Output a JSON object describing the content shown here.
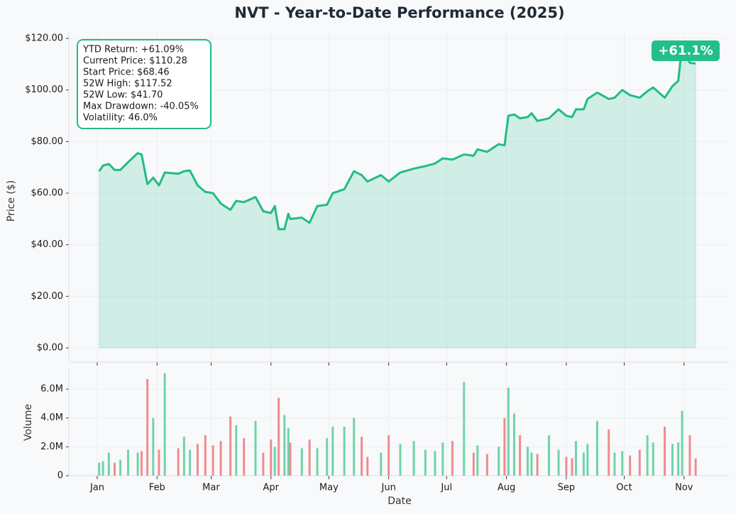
{
  "chart_data": [
    {
      "type": "line",
      "title": "NVT - Year-to-Date Performance (2025)",
      "y_label": "Price ($)",
      "annotation_lines": [
        "YTD Return: +61.09%",
        "Current Price: $110.28",
        "Start Price: $68.46",
        "52W High: $117.52",
        "52W Low: $41.70",
        "Max Drawdown: -40.05%",
        "Volatility: 46.0%"
      ],
      "badge": "+61.1%",
      "color": "#22bb88",
      "x": [
        2,
        4,
        7,
        10,
        13,
        17,
        22,
        24,
        27,
        30,
        33,
        36,
        43,
        46,
        49,
        53,
        57,
        61,
        65,
        70,
        73,
        77,
        83,
        87,
        91,
        93,
        95,
        98,
        100,
        101,
        107,
        111,
        115,
        120,
        123,
        129,
        134,
        138,
        141,
        148,
        152,
        158,
        165,
        171,
        176,
        180,
        185,
        191,
        196,
        198,
        203,
        209,
        212,
        214,
        217,
        220,
        224,
        226,
        229,
        235,
        240,
        244,
        247,
        249,
        253,
        255,
        260,
        266,
        269,
        273,
        277,
        282,
        286,
        289,
        295,
        299,
        302,
        304,
        308,
        311
      ],
      "values": [
        68.46,
        70.7,
        71.3,
        69,
        69,
        72,
        75.5,
        75,
        63.5,
        66,
        63,
        68,
        67.5,
        68.5,
        68.8,
        63,
        60.5,
        60,
        56,
        53.5,
        57,
        56.5,
        58.5,
        53,
        52.3,
        55,
        46,
        46,
        52,
        50,
        50.5,
        48.5,
        55,
        55.5,
        60,
        61.5,
        68.5,
        67,
        64.5,
        67,
        64.5,
        68,
        69.5,
        70.5,
        71.5,
        73.5,
        73,
        75,
        74.5,
        77,
        76,
        79,
        78.5,
        90,
        90.5,
        89,
        89.5,
        91,
        88,
        89,
        92.5,
        90,
        89.5,
        92.5,
        92.5,
        96.5,
        99,
        96.5,
        97,
        100,
        98,
        97,
        99.5,
        101,
        97,
        101.5,
        103.5,
        117.52,
        110.5,
        110.28
      ],
      "xlim": [
        -13.7,
        327.5
      ],
      "xticks": [
        1,
        32,
        60,
        91,
        121,
        152,
        182,
        213,
        244,
        274,
        305
      ],
      "ylim": [
        -5.5,
        122.5
      ],
      "yticks": [
        {
          "value": 0,
          "label": "$0.00"
        },
        {
          "value": 20,
          "label": "$20.00"
        },
        {
          "value": 40,
          "label": "$40.00"
        },
        {
          "value": 60,
          "label": "$60.00"
        },
        {
          "value": 80,
          "label": "$80.00"
        },
        {
          "value": 100,
          "label": "$100.00"
        },
        {
          "value": 120,
          "label": "$120.00"
        }
      ],
      "grid": true
    },
    {
      "type": "bar",
      "x_label": "Date",
      "y_label": "Volume",
      "up_color": "#5fcfa0",
      "down_color": "#ee7f7f",
      "x": [
        2,
        4,
        7,
        10,
        13,
        17,
        22,
        24,
        27,
        30,
        33,
        36,
        43,
        46,
        49,
        53,
        57,
        61,
        65,
        70,
        73,
        77,
        83,
        87,
        91,
        93,
        95,
        98,
        100,
        101,
        107,
        111,
        115,
        120,
        123,
        129,
        134,
        138,
        141,
        148,
        152,
        158,
        165,
        171,
        176,
        180,
        185,
        191,
        196,
        198,
        203,
        209,
        212,
        214,
        217,
        220,
        224,
        226,
        229,
        235,
        240,
        244,
        247,
        249,
        253,
        255,
        260,
        266,
        269,
        273,
        277,
        282,
        286,
        289,
        295,
        299,
        302,
        304,
        308,
        311
      ],
      "values": [
        900000,
        1000000,
        1600000,
        900000,
        1100000,
        1800000,
        1600000,
        1700000,
        6700000,
        4000000,
        1800000,
        7100000,
        1900000,
        2700000,
        1800000,
        2200000,
        2800000,
        2100000,
        2400000,
        4100000,
        3500000,
        2600000,
        3800000,
        1600000,
        2500000,
        2000000,
        5400000,
        4200000,
        3300000,
        2300000,
        1900000,
        2500000,
        1900000,
        2600000,
        3400000,
        3400000,
        4000000,
        2700000,
        1300000,
        1600000,
        2800000,
        2200000,
        2400000,
        1800000,
        1700000,
        2300000,
        2400000,
        6500000,
        1600000,
        2100000,
        1500000,
        2000000,
        4000000,
        6100000,
        4300000,
        2800000,
        2000000,
        1600000,
        1500000,
        2800000,
        1800000,
        1300000,
        1200000,
        2400000,
        1600000,
        2200000,
        3800000,
        3200000,
        1600000,
        1700000,
        1400000,
        1800000,
        2800000,
        2300000,
        3400000,
        2200000,
        2300000,
        4500000,
        2800000,
        1200000
      ],
      "xlim": [
        -13.7,
        327.5
      ],
      "xticks": [
        {
          "value": 1,
          "label": "Jan"
        },
        {
          "value": 32,
          "label": "Feb"
        },
        {
          "value": 60,
          "label": "Mar"
        },
        {
          "value": 91,
          "label": "Apr"
        },
        {
          "value": 121,
          "label": "May"
        },
        {
          "value": 152,
          "label": "Jun"
        },
        {
          "value": 182,
          "label": "Jul"
        },
        {
          "value": 213,
          "label": "Aug"
        },
        {
          "value": 244,
          "label": "Sep"
        },
        {
          "value": 274,
          "label": "Oct"
        },
        {
          "value": 305,
          "label": "Nov"
        }
      ],
      "ylim": [
        0,
        7480000
      ],
      "yticks": [
        0,
        {
          "value": 2000000,
          "label": "2.0M"
        },
        {
          "value": 4000000,
          "label": "4.0M"
        },
        {
          "value": 6000000,
          "label": "6.0M"
        }
      ],
      "grid": true
    }
  ]
}
